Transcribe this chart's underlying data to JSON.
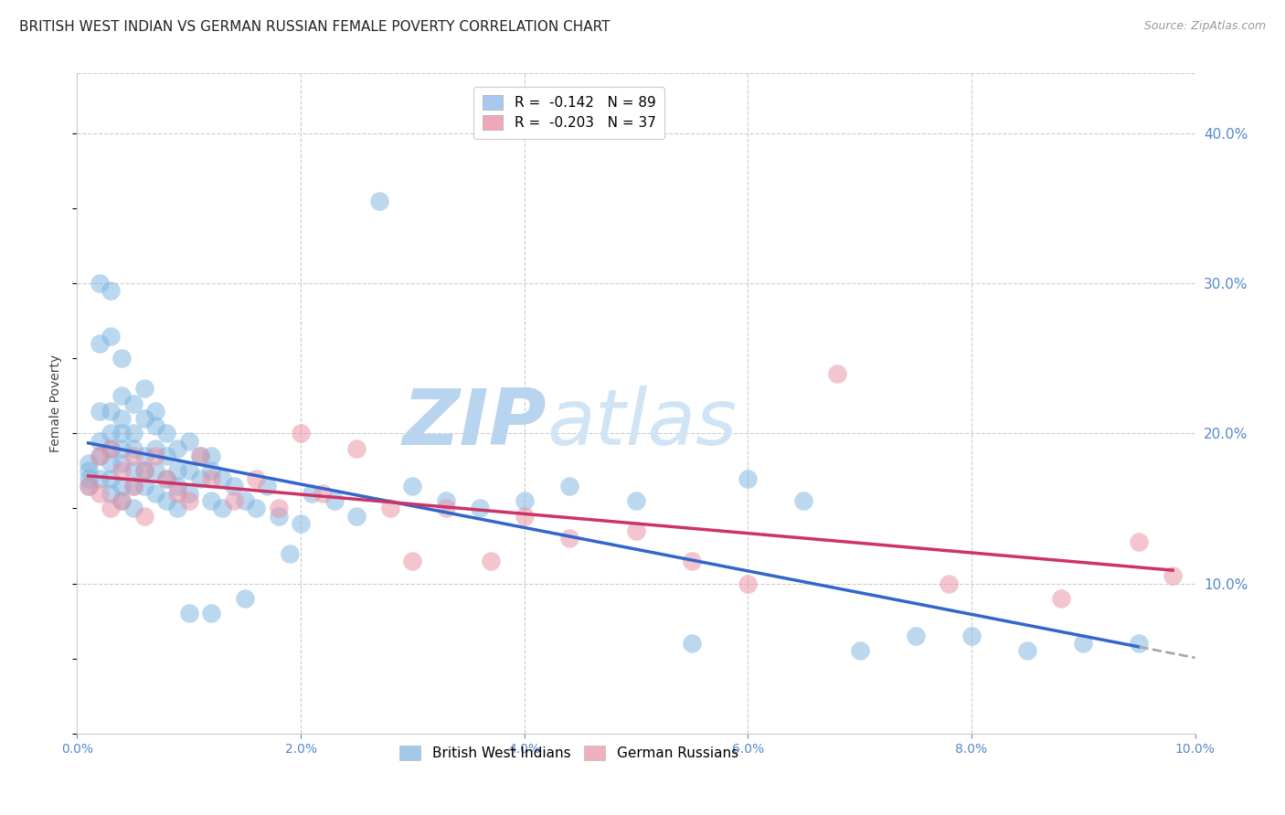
{
  "title": "BRITISH WEST INDIAN VS GERMAN RUSSIAN FEMALE POVERTY CORRELATION CHART",
  "source": "Source: ZipAtlas.com",
  "ylabel": "Female Poverty",
  "watermark_zip": "ZIP",
  "watermark_atlas": "atlas",
  "xlim": [
    0.0,
    0.1
  ],
  "ylim": [
    0.0,
    0.44
  ],
  "xticks": [
    0.0,
    0.02,
    0.04,
    0.06,
    0.08,
    0.1
  ],
  "yticks_right": [
    0.1,
    0.2,
    0.3,
    0.4
  ],
  "legend_entries": [
    {
      "label": "R =  -0.142   N = 89",
      "color": "#a8c8f0"
    },
    {
      "label": "R =  -0.203   N = 37",
      "color": "#f0a8b8"
    }
  ],
  "group1_label": "British West Indians",
  "group2_label": "German Russians",
  "group1_color": "#7ab3e0",
  "group2_color": "#e88fa0",
  "background_color": "#ffffff",
  "grid_color": "#cccccc",
  "axis_color": "#5588cc",
  "title_fontsize": 11,
  "source_fontsize": 9,
  "watermark_color": "#ccddf0",
  "bwi_x": [
    0.001,
    0.001,
    0.001,
    0.001,
    0.002,
    0.002,
    0.002,
    0.002,
    0.002,
    0.002,
    0.003,
    0.003,
    0.003,
    0.003,
    0.003,
    0.003,
    0.003,
    0.003,
    0.004,
    0.004,
    0.004,
    0.004,
    0.004,
    0.004,
    0.004,
    0.004,
    0.005,
    0.005,
    0.005,
    0.005,
    0.005,
    0.005,
    0.006,
    0.006,
    0.006,
    0.006,
    0.006,
    0.007,
    0.007,
    0.007,
    0.007,
    0.007,
    0.008,
    0.008,
    0.008,
    0.008,
    0.009,
    0.009,
    0.009,
    0.009,
    0.01,
    0.01,
    0.01,
    0.011,
    0.011,
    0.012,
    0.012,
    0.012,
    0.013,
    0.013,
    0.014,
    0.015,
    0.016,
    0.017,
    0.018,
    0.019,
    0.02,
    0.021,
    0.023,
    0.025,
    0.027,
    0.03,
    0.033,
    0.036,
    0.04,
    0.044,
    0.05,
    0.055,
    0.06,
    0.065,
    0.07,
    0.075,
    0.08,
    0.085,
    0.09,
    0.095,
    0.01,
    0.012,
    0.015
  ],
  "bwi_y": [
    0.175,
    0.18,
    0.17,
    0.165,
    0.3,
    0.26,
    0.215,
    0.195,
    0.185,
    0.17,
    0.295,
    0.265,
    0.215,
    0.2,
    0.19,
    0.18,
    0.17,
    0.16,
    0.25,
    0.225,
    0.21,
    0.2,
    0.19,
    0.18,
    0.165,
    0.155,
    0.22,
    0.2,
    0.19,
    0.175,
    0.165,
    0.15,
    0.23,
    0.21,
    0.185,
    0.175,
    0.165,
    0.215,
    0.205,
    0.19,
    0.175,
    0.16,
    0.2,
    0.185,
    0.17,
    0.155,
    0.19,
    0.175,
    0.165,
    0.15,
    0.195,
    0.175,
    0.16,
    0.185,
    0.17,
    0.185,
    0.175,
    0.155,
    0.17,
    0.15,
    0.165,
    0.155,
    0.15,
    0.165,
    0.145,
    0.12,
    0.14,
    0.16,
    0.155,
    0.145,
    0.355,
    0.165,
    0.155,
    0.15,
    0.155,
    0.165,
    0.155,
    0.06,
    0.17,
    0.155,
    0.055,
    0.065,
    0.065,
    0.055,
    0.06,
    0.06,
    0.08,
    0.08,
    0.09
  ],
  "gr_x": [
    0.001,
    0.002,
    0.002,
    0.003,
    0.003,
    0.004,
    0.004,
    0.005,
    0.005,
    0.006,
    0.006,
    0.007,
    0.008,
    0.009,
    0.01,
    0.011,
    0.012,
    0.014,
    0.016,
    0.018,
    0.02,
    0.022,
    0.025,
    0.028,
    0.03,
    0.033,
    0.037,
    0.04,
    0.044,
    0.05,
    0.055,
    0.06,
    0.068,
    0.078,
    0.088,
    0.095,
    0.098
  ],
  "gr_y": [
    0.165,
    0.185,
    0.16,
    0.19,
    0.15,
    0.175,
    0.155,
    0.185,
    0.165,
    0.175,
    0.145,
    0.185,
    0.17,
    0.16,
    0.155,
    0.185,
    0.17,
    0.155,
    0.17,
    0.15,
    0.2,
    0.16,
    0.19,
    0.15,
    0.115,
    0.15,
    0.115,
    0.145,
    0.13,
    0.135,
    0.115,
    0.1,
    0.24,
    0.1,
    0.09,
    0.128,
    0.105
  ]
}
